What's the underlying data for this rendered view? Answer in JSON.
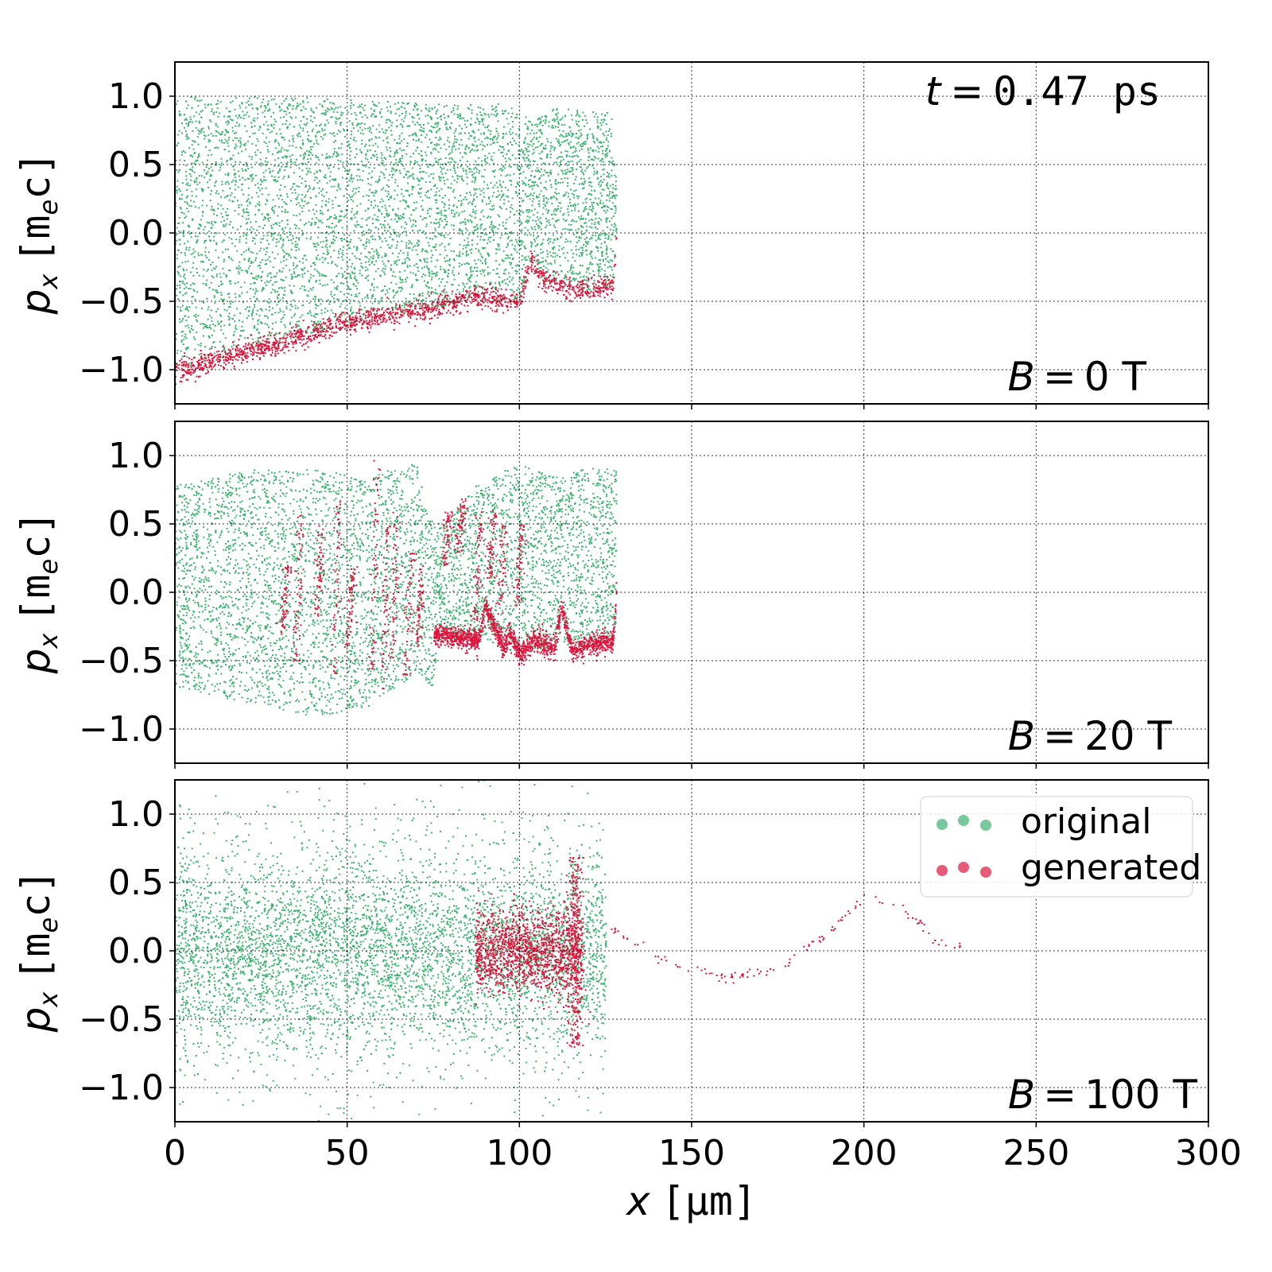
{
  "title": "t = 0.47 ps",
  "title_parts": {
    "var": "t",
    "eq": "=",
    "value": "0.47 ps"
  },
  "xlabel": {
    "var": "x",
    "unit": "[μm]"
  },
  "ylabel": {
    "var": "p",
    "sub": "x",
    "unit_open": "[m",
    "unit_sub": "e",
    "unit_close": "c]"
  },
  "colors": {
    "original": "#3cb371",
    "generated": "#dc143c",
    "legend_original": "#77c99c",
    "legend_generated": "#e75b78"
  },
  "legend": {
    "placement": "upper-right of bottom panel",
    "items": [
      "original",
      "generated"
    ]
  },
  "chart_data": [
    {
      "type": "scatter",
      "annotation": {
        "var": "B",
        "value": "0 T"
      },
      "xlim": [
        0,
        300
      ],
      "ylim": [
        -1.25,
        1.25
      ],
      "grid": true,
      "x_ticks": [
        "0",
        "50",
        "100",
        "150",
        "200",
        "250",
        "300"
      ],
      "y_ticks": [
        "1.0",
        "0.5",
        "0.0",
        "−0.5",
        "−1.0"
      ],
      "series": [
        {
          "name": "original",
          "kind": "envelope",
          "x": [
            0,
            10,
            30,
            50,
            75,
            88,
            95,
            100,
            103,
            106,
            110,
            120,
            127,
            128
          ],
          "y_min": [
            -1.0,
            -0.93,
            -0.8,
            -0.66,
            -0.55,
            -0.45,
            -0.5,
            -0.5,
            -0.2,
            -0.32,
            -0.38,
            -0.42,
            -0.38,
            0.0
          ],
          "y_max": [
            1.0,
            1.0,
            1.0,
            0.98,
            0.95,
            0.94,
            0.95,
            0.9,
            0.82,
            0.86,
            0.92,
            0.9,
            0.88,
            0.3
          ]
        },
        {
          "name": "generated",
          "kind": "band",
          "x": [
            0,
            10,
            20,
            30,
            40,
            50,
            60,
            75,
            88,
            95,
            100,
            103,
            106,
            110,
            120,
            127,
            128
          ],
          "y": [
            -1.0,
            -0.93,
            -0.86,
            -0.8,
            -0.72,
            -0.66,
            -0.6,
            -0.55,
            -0.45,
            -0.5,
            -0.5,
            -0.2,
            -0.32,
            -0.38,
            -0.42,
            -0.38,
            0.0
          ],
          "spread": 0.04
        }
      ]
    },
    {
      "type": "scatter",
      "annotation": {
        "var": "B",
        "value": "20 T"
      },
      "xlim": [
        0,
        300
      ],
      "ylim": [
        -1.25,
        1.25
      ],
      "grid": true,
      "x_ticks": [
        "0",
        "50",
        "100",
        "150",
        "200",
        "250",
        "300"
      ],
      "y_ticks": [
        "1.0",
        "0.5",
        "0.0",
        "−0.5",
        "−1.0"
      ],
      "series": [
        {
          "name": "original",
          "kind": "envelope",
          "x": [
            0,
            20,
            40,
            55,
            70,
            75,
            76,
            88,
            100,
            110,
            120,
            128
          ],
          "y_min": [
            -0.7,
            -0.8,
            -0.9,
            -0.85,
            -0.6,
            -0.7,
            -0.35,
            -0.32,
            -0.45,
            -0.38,
            -0.4,
            -0.35
          ],
          "y_max": [
            0.8,
            0.9,
            0.9,
            0.85,
            0.95,
            0.5,
            0.5,
            0.8,
            0.95,
            0.85,
            0.92,
            0.9
          ]
        },
        {
          "name": "generated",
          "kind": "band",
          "x": [
            75,
            88,
            90,
            95,
            97,
            100,
            104,
            110,
            112,
            115,
            120,
            127,
            128
          ],
          "y": [
            -0.3,
            -0.35,
            -0.1,
            -0.4,
            -0.3,
            -0.45,
            -0.35,
            -0.4,
            -0.1,
            -0.42,
            -0.38,
            -0.35,
            0.0
          ],
          "spread": 0.04,
          "streaks_x": [
            31,
            35,
            41,
            46,
            50,
            57,
            60,
            63,
            67,
            70,
            78,
            82,
            87,
            91,
            94,
            99
          ],
          "streaks_y": [
            [
              -0.3,
              0.2
            ],
            [
              -0.5,
              0.6
            ],
            [
              -0.2,
              0.5
            ],
            [
              -0.6,
              0.7
            ],
            [
              -0.4,
              0.2
            ],
            [
              -0.6,
              1.0
            ],
            [
              -0.7,
              0.5
            ],
            [
              -0.5,
              0.6
            ],
            [
              -0.6,
              0.3
            ],
            [
              -0.4,
              0.2
            ],
            [
              0.2,
              0.6
            ],
            [
              0.3,
              0.7
            ],
            [
              -0.2,
              0.6
            ],
            [
              0.1,
              0.6
            ],
            [
              -0.3,
              0.5
            ],
            [
              -0.1,
              0.5
            ]
          ]
        }
      ]
    },
    {
      "type": "scatter",
      "annotation": {
        "var": "B",
        "value": "100 T"
      },
      "xlim": [
        0,
        300
      ],
      "ylim": [
        -1.25,
        1.25
      ],
      "grid": true,
      "x_ticks": [
        "0",
        "50",
        "100",
        "150",
        "200",
        "250",
        "300"
      ],
      "y_ticks": [
        "1.0",
        "0.5",
        "0.0",
        "−0.5",
        "−1.0"
      ],
      "series": [
        {
          "name": "original",
          "kind": "gaussian",
          "x_range": [
            0,
            125
          ],
          "sigma": 0.35,
          "center": 0.0
        },
        {
          "name": "generated",
          "kind": "cluster",
          "x_range": [
            87,
            118
          ],
          "sigma": 0.15,
          "spike_x": 116,
          "spike_extent": 0.7,
          "tail_x": [
            125,
            140,
            160,
            175,
            190,
            200,
            210,
            220,
            230
          ],
          "tail_y": [
            0.2,
            -0.05,
            -0.2,
            -0.15,
            0.15,
            0.4,
            0.35,
            0.1,
            0.0
          ]
        }
      ]
    }
  ]
}
